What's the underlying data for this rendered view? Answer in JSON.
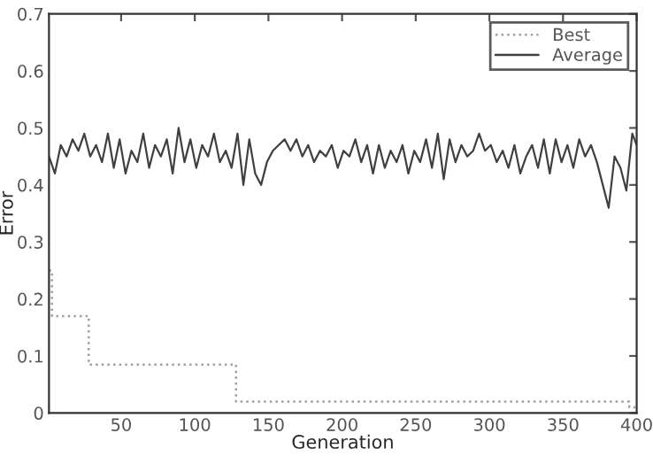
{
  "chart_data": {
    "type": "line",
    "xlabel": "Generation",
    "ylabel": "Error",
    "xlim": [
      1,
      400
    ],
    "xticks": [
      50,
      100,
      150,
      200,
      250,
      300,
      350,
      400
    ],
    "ylim": [
      0,
      0.7
    ],
    "yticks": [
      0,
      0.1,
      0.2,
      0.3,
      0.4,
      0.5,
      0.6,
      0.7
    ],
    "grid": false,
    "legend": "top right",
    "series": [
      {
        "name": "Best",
        "type": "step",
        "color": "#a0a0a0",
        "line_style": "dotted",
        "x": [
          1,
          3,
          28,
          128,
          395,
          400
        ],
        "values": [
          0.25,
          0.17,
          0.085,
          0.02,
          0.01,
          0.01
        ]
      },
      {
        "name": "Average",
        "color": "#404040",
        "line_style": "solid",
        "x": [
          1,
          5,
          9,
          13,
          17,
          21,
          25,
          29,
          33,
          37,
          41,
          45,
          49,
          53,
          57,
          61,
          65,
          69,
          73,
          77,
          81,
          85,
          89,
          93,
          97,
          101,
          105,
          109,
          113,
          117,
          121,
          125,
          129,
          133,
          137,
          141,
          145,
          149,
          153,
          157,
          161,
          165,
          169,
          173,
          177,
          181,
          185,
          189,
          193,
          197,
          201,
          205,
          209,
          213,
          217,
          221,
          225,
          229,
          233,
          237,
          241,
          245,
          249,
          253,
          257,
          261,
          265,
          269,
          273,
          277,
          281,
          285,
          289,
          293,
          297,
          301,
          305,
          309,
          313,
          317,
          321,
          325,
          329,
          333,
          337,
          341,
          345,
          349,
          353,
          357,
          361,
          365,
          369,
          373,
          377,
          381,
          385,
          389,
          393,
          397,
          400
        ],
        "values": [
          0.45,
          0.42,
          0.47,
          0.45,
          0.48,
          0.46,
          0.49,
          0.45,
          0.47,
          0.44,
          0.49,
          0.43,
          0.48,
          0.42,
          0.46,
          0.44,
          0.49,
          0.43,
          0.47,
          0.45,
          0.48,
          0.42,
          0.5,
          0.44,
          0.48,
          0.43,
          0.47,
          0.45,
          0.49,
          0.44,
          0.46,
          0.43,
          0.49,
          0.4,
          0.48,
          0.42,
          0.4,
          0.44,
          0.46,
          0.47,
          0.48,
          0.46,
          0.48,
          0.45,
          0.47,
          0.44,
          0.46,
          0.45,
          0.47,
          0.43,
          0.46,
          0.45,
          0.48,
          0.44,
          0.47,
          0.42,
          0.47,
          0.43,
          0.46,
          0.44,
          0.47,
          0.42,
          0.46,
          0.44,
          0.48,
          0.43,
          0.49,
          0.41,
          0.48,
          0.44,
          0.47,
          0.45,
          0.46,
          0.49,
          0.46,
          0.47,
          0.44,
          0.46,
          0.43,
          0.47,
          0.42,
          0.45,
          0.47,
          0.43,
          0.48,
          0.42,
          0.48,
          0.44,
          0.47,
          0.43,
          0.48,
          0.45,
          0.47,
          0.44,
          0.4,
          0.36,
          0.45,
          0.43,
          0.39,
          0.49,
          0.47
        ]
      }
    ]
  }
}
